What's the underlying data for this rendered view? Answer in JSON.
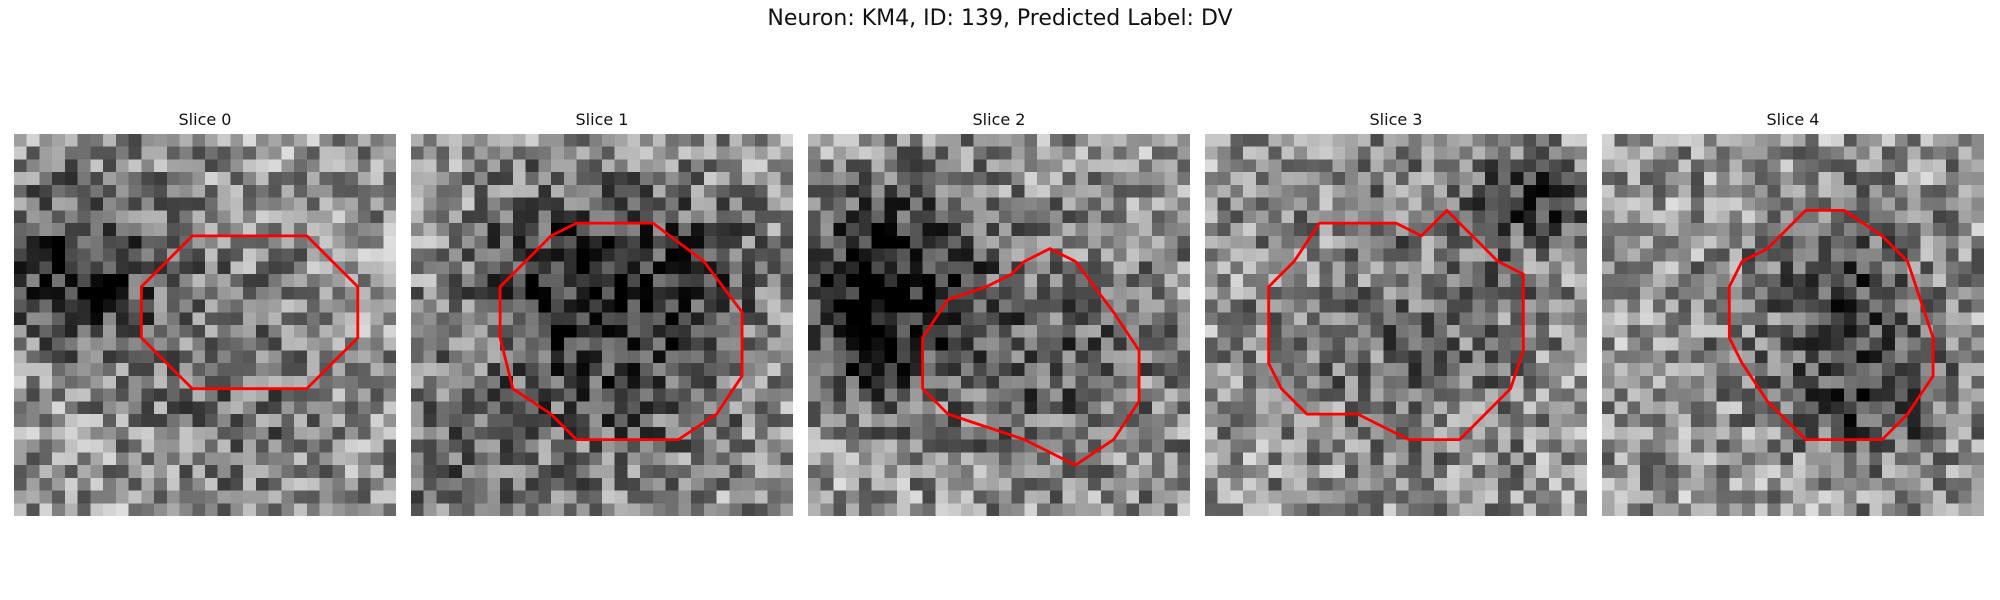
{
  "figure": {
    "title": "Neuron: KM4, ID: 139, Predicted Label: DV"
  },
  "panels": [
    {
      "title": "Slice 0",
      "contour": [
        [
          14,
          8
        ],
        [
          23,
          8
        ],
        [
          25,
          10
        ],
        [
          27,
          12
        ],
        [
          27,
          16
        ],
        [
          25,
          18
        ],
        [
          23,
          20
        ],
        [
          14,
          20
        ],
        [
          12,
          18
        ],
        [
          10,
          16
        ],
        [
          10,
          12
        ],
        [
          12,
          10
        ]
      ],
      "dark_regions": [
        [
          4,
          9,
          5,
          -70
        ],
        [
          5,
          12,
          3,
          -55
        ],
        [
          15,
          14,
          6,
          -25
        ],
        [
          18,
          22,
          5,
          -30
        ]
      ]
    },
    {
      "title": "Slice 1",
      "contour": [
        [
          13,
          7
        ],
        [
          19,
          7
        ],
        [
          23,
          10
        ],
        [
          26,
          14
        ],
        [
          26,
          19
        ],
        [
          24,
          22
        ],
        [
          21,
          24
        ],
        [
          13,
          24
        ],
        [
          11,
          22
        ],
        [
          8,
          20
        ],
        [
          7,
          16
        ],
        [
          7,
          12
        ],
        [
          9,
          10
        ],
        [
          11,
          8
        ]
      ],
      "dark_regions": [
        [
          15,
          15,
          8,
          -80
        ],
        [
          10,
          10,
          4,
          -40
        ],
        [
          21,
          11,
          4,
          -40
        ],
        [
          3,
          27,
          4,
          -40
        ]
      ]
    },
    {
      "title": "Slice 2",
      "contour": [
        [
          19,
          9
        ],
        [
          21,
          10
        ],
        [
          24,
          14
        ],
        [
          26,
          17
        ],
        [
          26,
          21
        ],
        [
          24,
          24
        ],
        [
          21,
          26
        ],
        [
          17,
          24
        ],
        [
          14,
          23
        ],
        [
          11,
          22
        ],
        [
          9,
          20
        ],
        [
          9,
          16
        ],
        [
          11,
          13
        ],
        [
          14,
          12
        ],
        [
          16,
          11
        ],
        [
          17,
          10
        ]
      ],
      "dark_regions": [
        [
          6,
          10,
          5,
          -85
        ],
        [
          3,
          13,
          4,
          -70
        ],
        [
          18,
          17,
          7,
          -55
        ],
        [
          5,
          19,
          3,
          -40
        ]
      ]
    },
    {
      "title": "Slice 3",
      "contour": [
        [
          9,
          7
        ],
        [
          15,
          7
        ],
        [
          17,
          8
        ],
        [
          19,
          6
        ],
        [
          21,
          8
        ],
        [
          23,
          10
        ],
        [
          25,
          11
        ],
        [
          25,
          17
        ],
        [
          24,
          20
        ],
        [
          22,
          22
        ],
        [
          20,
          24
        ],
        [
          16,
          24
        ],
        [
          14,
          23
        ],
        [
          12,
          22
        ],
        [
          8,
          22
        ],
        [
          6,
          20
        ],
        [
          5,
          18
        ],
        [
          5,
          12
        ],
        [
          7,
          10
        ]
      ],
      "dark_regions": [
        [
          16,
          15,
          8,
          -40
        ],
        [
          24,
          4,
          3,
          -50
        ],
        [
          27,
          5,
          2,
          -60
        ]
      ]
    },
    {
      "title": "Slice 4",
      "contour": [
        [
          16,
          6
        ],
        [
          19,
          6
        ],
        [
          22,
          8
        ],
        [
          24,
          10
        ],
        [
          25,
          13
        ],
        [
          26,
          16
        ],
        [
          26,
          19
        ],
        [
          24,
          22
        ],
        [
          22,
          24
        ],
        [
          16,
          24
        ],
        [
          14,
          22
        ],
        [
          13,
          21
        ],
        [
          11,
          18
        ],
        [
          10,
          16
        ],
        [
          10,
          12
        ],
        [
          11,
          10
        ],
        [
          13,
          9
        ]
      ],
      "dark_regions": [
        [
          21,
          20,
          4,
          -75
        ],
        [
          17,
          13,
          6,
          -45
        ],
        [
          20,
          10,
          3,
          -30
        ]
      ]
    }
  ],
  "colors": {
    "contour": "#ff0000"
  }
}
